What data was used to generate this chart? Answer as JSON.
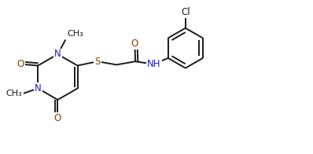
{
  "background_color": "#ffffff",
  "line_color": "#1a1a1a",
  "atom_color_N": "#1a1acd",
  "atom_color_O": "#8b4000",
  "atom_color_S": "#8b4000",
  "atom_color_Cl": "#1a1a1a",
  "line_width": 1.4,
  "font_size": 8.5,
  "fig_width": 3.98,
  "fig_height": 1.96,
  "dpi": 100,
  "xlim": [
    0,
    11
  ],
  "ylim": [
    0,
    5.5
  ]
}
